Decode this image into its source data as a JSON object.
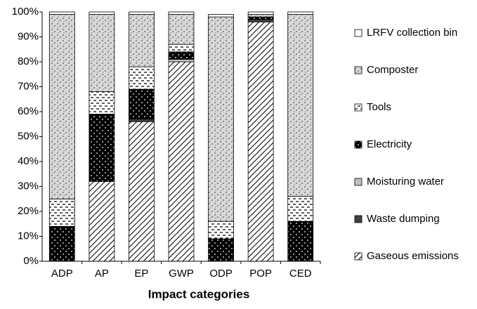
{
  "chart_data": {
    "type": "stacked-bar",
    "x_label": "Impact categories",
    "categories": [
      "ADP",
      "AP",
      "EP",
      "GWP",
      "ODP",
      "POP",
      "CED"
    ],
    "series": [
      {
        "name": "Gaseous emissions",
        "color": "#ffffff",
        "values": [
          0,
          32,
          56,
          80,
          0,
          96,
          0
        ]
      },
      {
        "name": "Waste dumping",
        "color": "#404040",
        "values": [
          0,
          0,
          1,
          0,
          0,
          1,
          0
        ]
      },
      {
        "name": "Moisturing water",
        "color": "#c0c0c0",
        "values": [
          0,
          0,
          0,
          1,
          0,
          0,
          0
        ]
      },
      {
        "name": "Electricity",
        "color": "#000000",
        "values": [
          14,
          27,
          12,
          3,
          9,
          1,
          16
        ]
      },
      {
        "name": "Tools",
        "color": "#ffffff",
        "values": [
          11,
          9,
          9,
          3,
          7,
          0,
          10
        ]
      },
      {
        "name": "Composter",
        "color": "#d8d8d8",
        "values": [
          74,
          31,
          21,
          12,
          82,
          1,
          73
        ]
      },
      {
        "name": "LRFV collection bin",
        "color": "#ffffff",
        "values": [
          1,
          1,
          1,
          1,
          1,
          1,
          1
        ]
      }
    ],
    "ylim": [
      0,
      100
    ],
    "yticks": [
      {
        "value": 0,
        "label": "0%"
      },
      {
        "value": 10,
        "label": "10%"
      },
      {
        "value": 20,
        "label": "20%"
      },
      {
        "value": 30,
        "label": "30%"
      },
      {
        "value": 40,
        "label": "40%"
      },
      {
        "value": 50,
        "label": "50%"
      },
      {
        "value": 60,
        "label": "60%"
      },
      {
        "value": 70,
        "label": "70%"
      },
      {
        "value": 80,
        "label": "80%"
      },
      {
        "value": 90,
        "label": "90%"
      },
      {
        "value": 100,
        "label": "100%"
      }
    ],
    "legend": "right"
  }
}
